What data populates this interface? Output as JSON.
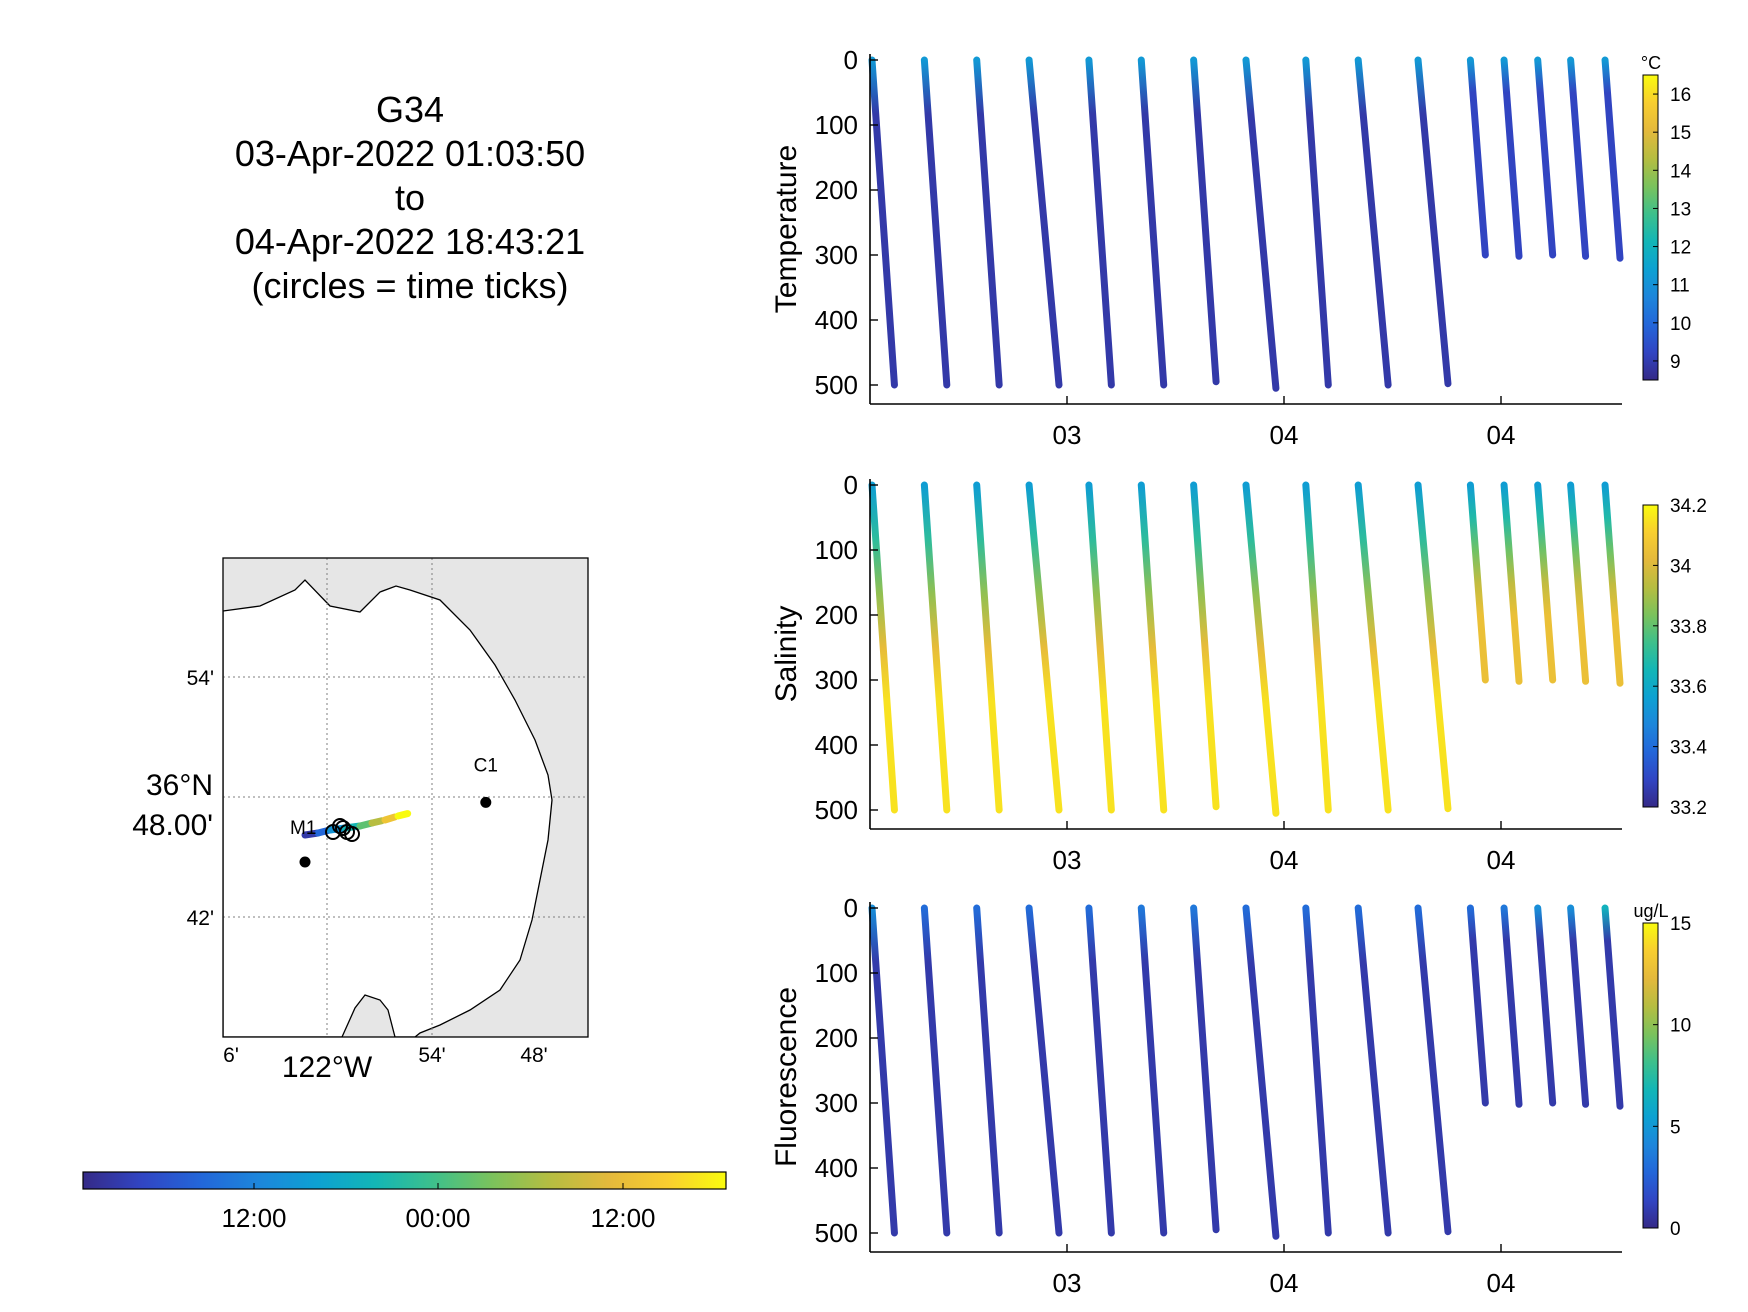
{
  "title": {
    "lines": [
      "G34",
      "03-Apr-2022 01:03:50",
      "to",
      "04-Apr-2022 18:43:21",
      "(circles = time ticks)"
    ]
  },
  "colors": {
    "parula": [
      "#352a87",
      "#3145c3",
      "#2366d9",
      "#1d86db",
      "#0da1d2",
      "#13b6b6",
      "#3ec08b",
      "#7bc25c",
      "#b6bd41",
      "#e4b93c",
      "#f8ce2f",
      "#f9fb0e"
    ],
    "land": "#e6e6e6",
    "axis": "#000000",
    "grid": "#7f7f7f"
  },
  "chart_data": [
    {
      "type": "scatter",
      "name": "temperature-section",
      "ylabel": "Temperature",
      "xticklabels": [
        "03",
        "04",
        "04"
      ],
      "yticks": [
        0,
        100,
        200,
        300,
        400,
        500
      ],
      "ylim": [
        0,
        520
      ],
      "ydir": "reverse",
      "colorbar": {
        "unit": "°C",
        "ticks": [
          "9",
          "10",
          "11",
          "12",
          "13",
          "14",
          "15",
          "16"
        ],
        "range": [
          8.5,
          16.5
        ]
      },
      "profiles": [
        {
          "x0": 0.0,
          "x1": 0.03,
          "max_depth": 500,
          "top_value": 11.2,
          "bottom_value": 8.9
        },
        {
          "x0": 0.07,
          "x1": 0.1,
          "max_depth": 500,
          "top_value": 11.2,
          "bottom_value": 8.9
        },
        {
          "x0": 0.14,
          "x1": 0.17,
          "max_depth": 500,
          "top_value": 11.2,
          "bottom_value": 8.9
        },
        {
          "x0": 0.21,
          "x1": 0.25,
          "max_depth": 500,
          "top_value": 11.2,
          "bottom_value": 8.9
        },
        {
          "x0": 0.29,
          "x1": 0.32,
          "max_depth": 500,
          "top_value": 11.2,
          "bottom_value": 8.9
        },
        {
          "x0": 0.36,
          "x1": 0.39,
          "max_depth": 500,
          "top_value": 11.2,
          "bottom_value": 8.9
        },
        {
          "x0": 0.43,
          "x1": 0.46,
          "max_depth": 495,
          "top_value": 11.2,
          "bottom_value": 8.9
        },
        {
          "x0": 0.5,
          "x1": 0.54,
          "max_depth": 505,
          "top_value": 11.2,
          "bottom_value": 8.9
        },
        {
          "x0": 0.58,
          "x1": 0.61,
          "max_depth": 500,
          "top_value": 11.2,
          "bottom_value": 8.9
        },
        {
          "x0": 0.65,
          "x1": 0.69,
          "max_depth": 500,
          "top_value": 11.2,
          "bottom_value": 8.9
        },
        {
          "x0": 0.73,
          "x1": 0.77,
          "max_depth": 498,
          "top_value": 11.2,
          "bottom_value": 8.9
        },
        {
          "x0": 0.8,
          "x1": 0.82,
          "max_depth": 300,
          "top_value": 11.2,
          "bottom_value": 9.2
        },
        {
          "x0": 0.845,
          "x1": 0.865,
          "max_depth": 302,
          "top_value": 11.2,
          "bottom_value": 9.2
        },
        {
          "x0": 0.89,
          "x1": 0.91,
          "max_depth": 300,
          "top_value": 11.2,
          "bottom_value": 9.2
        },
        {
          "x0": 0.934,
          "x1": 0.954,
          "max_depth": 302,
          "top_value": 11.2,
          "bottom_value": 9.2
        },
        {
          "x0": 0.98,
          "x1": 1.0,
          "max_depth": 305,
          "top_value": 11.2,
          "bottom_value": 9.2
        }
      ]
    },
    {
      "type": "scatter",
      "name": "salinity-section",
      "ylabel": "Salinity",
      "xticklabels": [
        "03",
        "04",
        "04"
      ],
      "yticks": [
        0,
        100,
        200,
        300,
        400,
        500
      ],
      "ylim": [
        0,
        520
      ],
      "ydir": "reverse",
      "colorbar": {
        "unit": "",
        "ticks": [
          "33.2",
          "33.4",
          "33.6",
          "33.8",
          "34",
          "34.2"
        ],
        "range": [
          33.2,
          34.2
        ]
      },
      "profiles": [
        {
          "x0": 0.0,
          "x1": 0.03,
          "max_depth": 500,
          "top_value": 33.55,
          "bottom_value": 34.15
        },
        {
          "x0": 0.07,
          "x1": 0.1,
          "max_depth": 500,
          "top_value": 33.55,
          "bottom_value": 34.15
        },
        {
          "x0": 0.14,
          "x1": 0.17,
          "max_depth": 500,
          "top_value": 33.55,
          "bottom_value": 34.15
        },
        {
          "x0": 0.21,
          "x1": 0.25,
          "max_depth": 500,
          "top_value": 33.55,
          "bottom_value": 34.15
        },
        {
          "x0": 0.29,
          "x1": 0.32,
          "max_depth": 500,
          "top_value": 33.55,
          "bottom_value": 34.15
        },
        {
          "x0": 0.36,
          "x1": 0.39,
          "max_depth": 500,
          "top_value": 33.55,
          "bottom_value": 34.15
        },
        {
          "x0": 0.43,
          "x1": 0.46,
          "max_depth": 495,
          "top_value": 33.55,
          "bottom_value": 34.15
        },
        {
          "x0": 0.5,
          "x1": 0.54,
          "max_depth": 505,
          "top_value": 33.55,
          "bottom_value": 34.15
        },
        {
          "x0": 0.58,
          "x1": 0.61,
          "max_depth": 500,
          "top_value": 33.55,
          "bottom_value": 34.15
        },
        {
          "x0": 0.65,
          "x1": 0.69,
          "max_depth": 500,
          "top_value": 33.55,
          "bottom_value": 34.15
        },
        {
          "x0": 0.73,
          "x1": 0.77,
          "max_depth": 498,
          "top_value": 33.55,
          "bottom_value": 34.15
        },
        {
          "x0": 0.8,
          "x1": 0.82,
          "max_depth": 300,
          "top_value": 33.55,
          "bottom_value": 34.05
        },
        {
          "x0": 0.845,
          "x1": 0.865,
          "max_depth": 302,
          "top_value": 33.55,
          "bottom_value": 34.05
        },
        {
          "x0": 0.89,
          "x1": 0.91,
          "max_depth": 300,
          "top_value": 33.55,
          "bottom_value": 34.05
        },
        {
          "x0": 0.934,
          "x1": 0.954,
          "max_depth": 302,
          "top_value": 33.55,
          "bottom_value": 34.05
        },
        {
          "x0": 0.98,
          "x1": 1.0,
          "max_depth": 305,
          "top_value": 33.55,
          "bottom_value": 34.05
        }
      ]
    },
    {
      "type": "scatter",
      "name": "fluorescence-section",
      "ylabel": "Fluorescence",
      "xticklabels": [
        "03",
        "04",
        "04"
      ],
      "yticks": [
        0,
        100,
        200,
        300,
        400,
        500
      ],
      "ylim": [
        0,
        520
      ],
      "ydir": "reverse",
      "colorbar": {
        "unit": "ug/L",
        "ticks": [
          "0",
          "5",
          "10",
          "15"
        ],
        "range": [
          0,
          15
        ]
      },
      "profiles": [
        {
          "x0": 0.0,
          "x1": 0.03,
          "max_depth": 500,
          "top_value": 4.5,
          "bottom_value": 0.8
        },
        {
          "x0": 0.07,
          "x1": 0.1,
          "max_depth": 500,
          "top_value": 3.0,
          "bottom_value": 0.8
        },
        {
          "x0": 0.14,
          "x1": 0.17,
          "max_depth": 500,
          "top_value": 3.0,
          "bottom_value": 0.8
        },
        {
          "x0": 0.21,
          "x1": 0.25,
          "max_depth": 500,
          "top_value": 3.0,
          "bottom_value": 0.8
        },
        {
          "x0": 0.29,
          "x1": 0.32,
          "max_depth": 500,
          "top_value": 3.0,
          "bottom_value": 0.8
        },
        {
          "x0": 0.36,
          "x1": 0.39,
          "max_depth": 500,
          "top_value": 3.5,
          "bottom_value": 0.8
        },
        {
          "x0": 0.43,
          "x1": 0.46,
          "max_depth": 495,
          "top_value": 3.5,
          "bottom_value": 0.8
        },
        {
          "x0": 0.5,
          "x1": 0.54,
          "max_depth": 505,
          "top_value": 3.0,
          "bottom_value": 0.8
        },
        {
          "x0": 0.58,
          "x1": 0.61,
          "max_depth": 500,
          "top_value": 3.0,
          "bottom_value": 0.8
        },
        {
          "x0": 0.65,
          "x1": 0.69,
          "max_depth": 500,
          "top_value": 3.0,
          "bottom_value": 0.8
        },
        {
          "x0": 0.73,
          "x1": 0.77,
          "max_depth": 498,
          "top_value": 3.0,
          "bottom_value": 0.8
        },
        {
          "x0": 0.8,
          "x1": 0.82,
          "max_depth": 300,
          "top_value": 3.0,
          "bottom_value": 0.8
        },
        {
          "x0": 0.845,
          "x1": 0.865,
          "max_depth": 302,
          "top_value": 3.5,
          "bottom_value": 0.8
        },
        {
          "x0": 0.89,
          "x1": 0.91,
          "max_depth": 300,
          "top_value": 4.5,
          "bottom_value": 0.8
        },
        {
          "x0": 0.934,
          "x1": 0.954,
          "max_depth": 302,
          "top_value": 4.5,
          "bottom_value": 0.8
        },
        {
          "x0": 0.98,
          "x1": 1.0,
          "max_depth": 305,
          "top_value": 6.5,
          "bottom_value": 0.8
        }
      ]
    },
    {
      "type": "map",
      "name": "glider-track-map",
      "xtick_labels": [
        "6'",
        "54'",
        "48'"
      ],
      "xlabel_major": "122°W",
      "ytick_labels": [
        "54'",
        "42'"
      ],
      "ylabel_major_lines": [
        "36°N",
        "48.00'"
      ],
      "stations": [
        {
          "label": "C1",
          "lon_frac": 0.72,
          "lat_frac": 0.508
        },
        {
          "label": "M1",
          "lon_frac": 0.22,
          "lat_frac": 0.633
        }
      ],
      "time_colorbar": {
        "ticks": [
          "12:00",
          "00:00",
          "12:00"
        ]
      }
    }
  ]
}
